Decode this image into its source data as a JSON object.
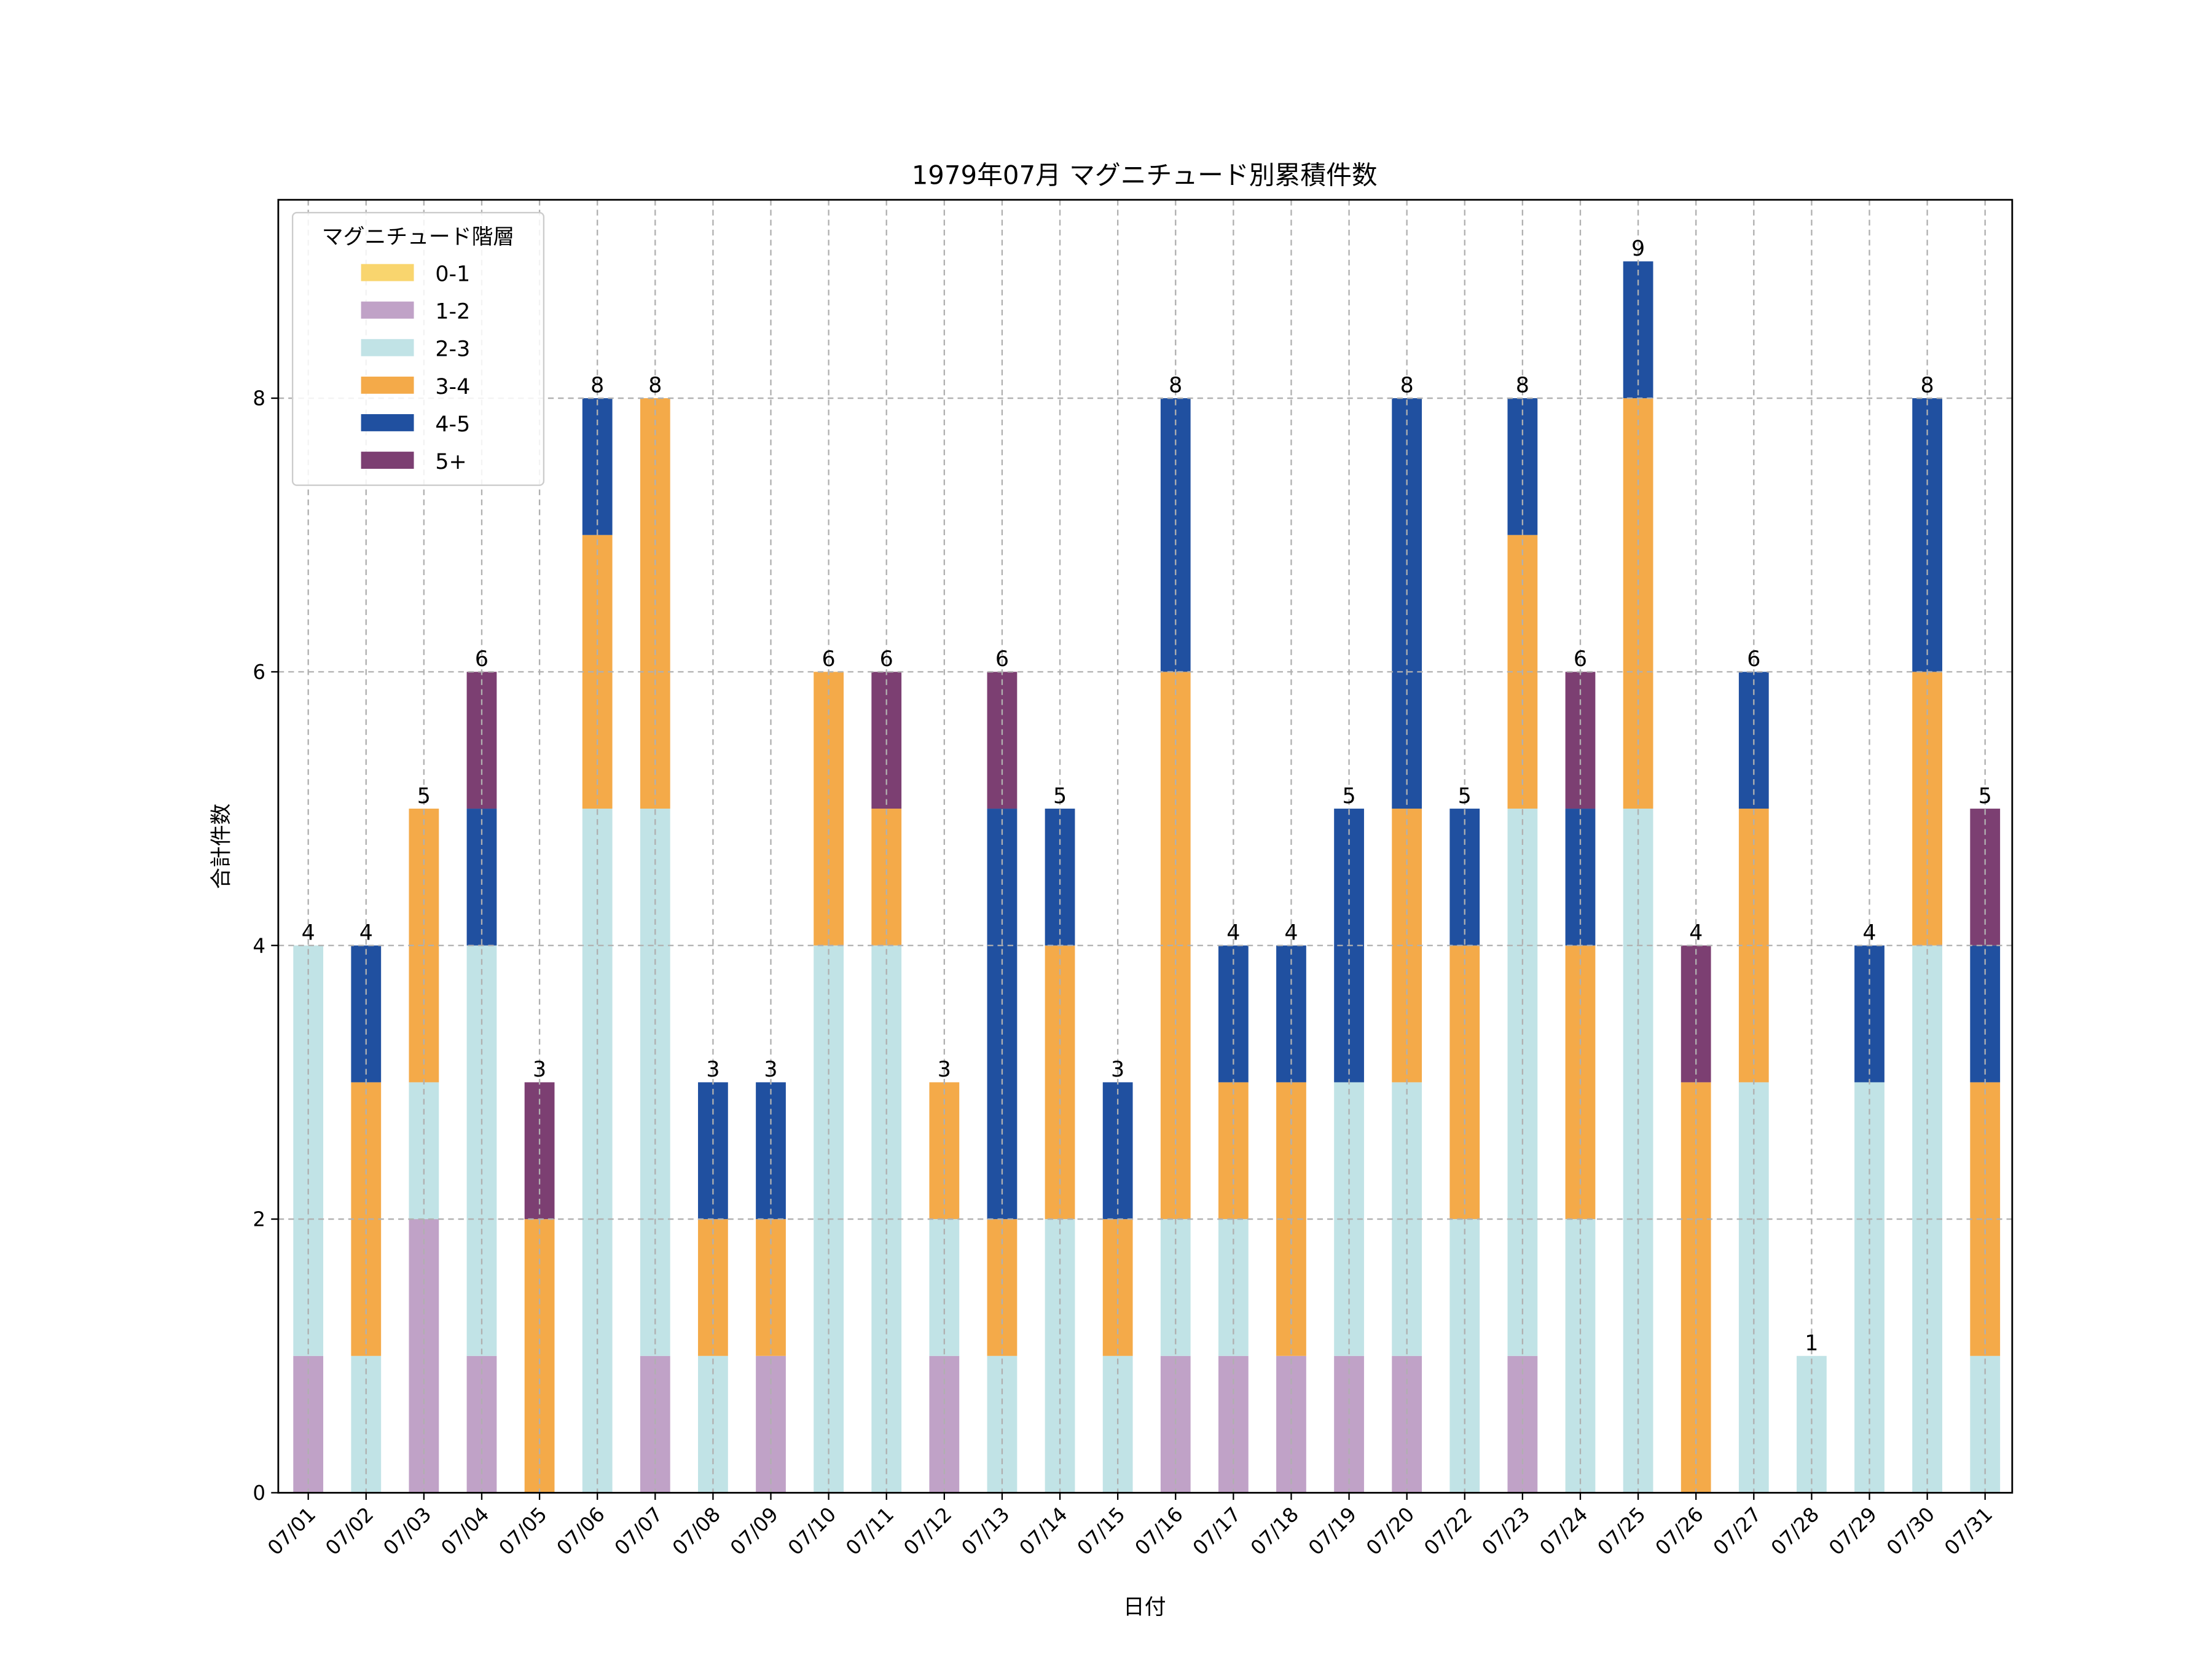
{
  "chart_data": {
    "type": "bar",
    "stacked": true,
    "title": "1979年07月 マグニチュード別累積件数",
    "xlabel": "日付",
    "ylabel": "合計件数",
    "ylim": [
      0,
      9.45
    ],
    "yticks": [
      0,
      2,
      4,
      6,
      8
    ],
    "grid": true,
    "legend": {
      "title": "マグニチュード階層",
      "placement": "top-left"
    },
    "categories": [
      "07/01",
      "07/02",
      "07/03",
      "07/04",
      "07/05",
      "07/06",
      "07/07",
      "07/08",
      "07/09",
      "07/10",
      "07/11",
      "07/12",
      "07/13",
      "07/14",
      "07/15",
      "07/16",
      "07/17",
      "07/18",
      "07/19",
      "07/20",
      "07/22",
      "07/23",
      "07/24",
      "07/25",
      "07/26",
      "07/27",
      "07/28",
      "07/29",
      "07/30",
      "07/31"
    ],
    "series": [
      {
        "name": "0-1",
        "color": "#F9D56E",
        "values": [
          0,
          0,
          0,
          0,
          0,
          0,
          0,
          0,
          0,
          0,
          0,
          0,
          0,
          0,
          0,
          0,
          0,
          0,
          0,
          0,
          0,
          0,
          0,
          0,
          0,
          0,
          0,
          0,
          0,
          0
        ]
      },
      {
        "name": "1-2",
        "color": "#C0A2C7",
        "values": [
          1,
          0,
          2,
          1,
          0,
          0,
          1,
          0,
          1,
          0,
          0,
          1,
          0,
          0,
          0,
          1,
          1,
          1,
          1,
          1,
          0,
          1,
          0,
          0,
          0,
          0,
          0,
          0,
          0,
          0
        ]
      },
      {
        "name": "2-3",
        "color": "#C1E3E6",
        "values": [
          3,
          1,
          1,
          3,
          0,
          5,
          4,
          1,
          0,
          4,
          4,
          1,
          1,
          2,
          1,
          1,
          1,
          0,
          2,
          2,
          2,
          4,
          2,
          5,
          0,
          3,
          1,
          3,
          4,
          1
        ]
      },
      {
        "name": "3-4",
        "color": "#F4AA49",
        "values": [
          0,
          2,
          2,
          0,
          2,
          2,
          3,
          1,
          1,
          2,
          1,
          1,
          1,
          2,
          1,
          4,
          1,
          2,
          0,
          2,
          2,
          2,
          2,
          3,
          3,
          2,
          0,
          0,
          2,
          2
        ]
      },
      {
        "name": "4-5",
        "color": "#2050A0",
        "values": [
          0,
          1,
          0,
          1,
          0,
          1,
          0,
          1,
          1,
          0,
          0,
          0,
          3,
          1,
          1,
          2,
          1,
          1,
          2,
          3,
          1,
          1,
          1,
          1,
          0,
          1,
          0,
          1,
          2,
          1
        ]
      },
      {
        "name": "5+",
        "color": "#7C3F72",
        "values": [
          0,
          0,
          0,
          1,
          1,
          0,
          0,
          0,
          0,
          0,
          1,
          0,
          1,
          0,
          0,
          0,
          0,
          0,
          0,
          0,
          0,
          0,
          1,
          0,
          1,
          0,
          0,
          0,
          0,
          1
        ]
      }
    ],
    "totals": [
      4,
      4,
      5,
      6,
      3,
      8,
      8,
      3,
      3,
      6,
      6,
      3,
      6,
      5,
      3,
      8,
      4,
      4,
      5,
      8,
      5,
      8,
      6,
      9,
      4,
      6,
      1,
      4,
      8,
      5
    ]
  }
}
